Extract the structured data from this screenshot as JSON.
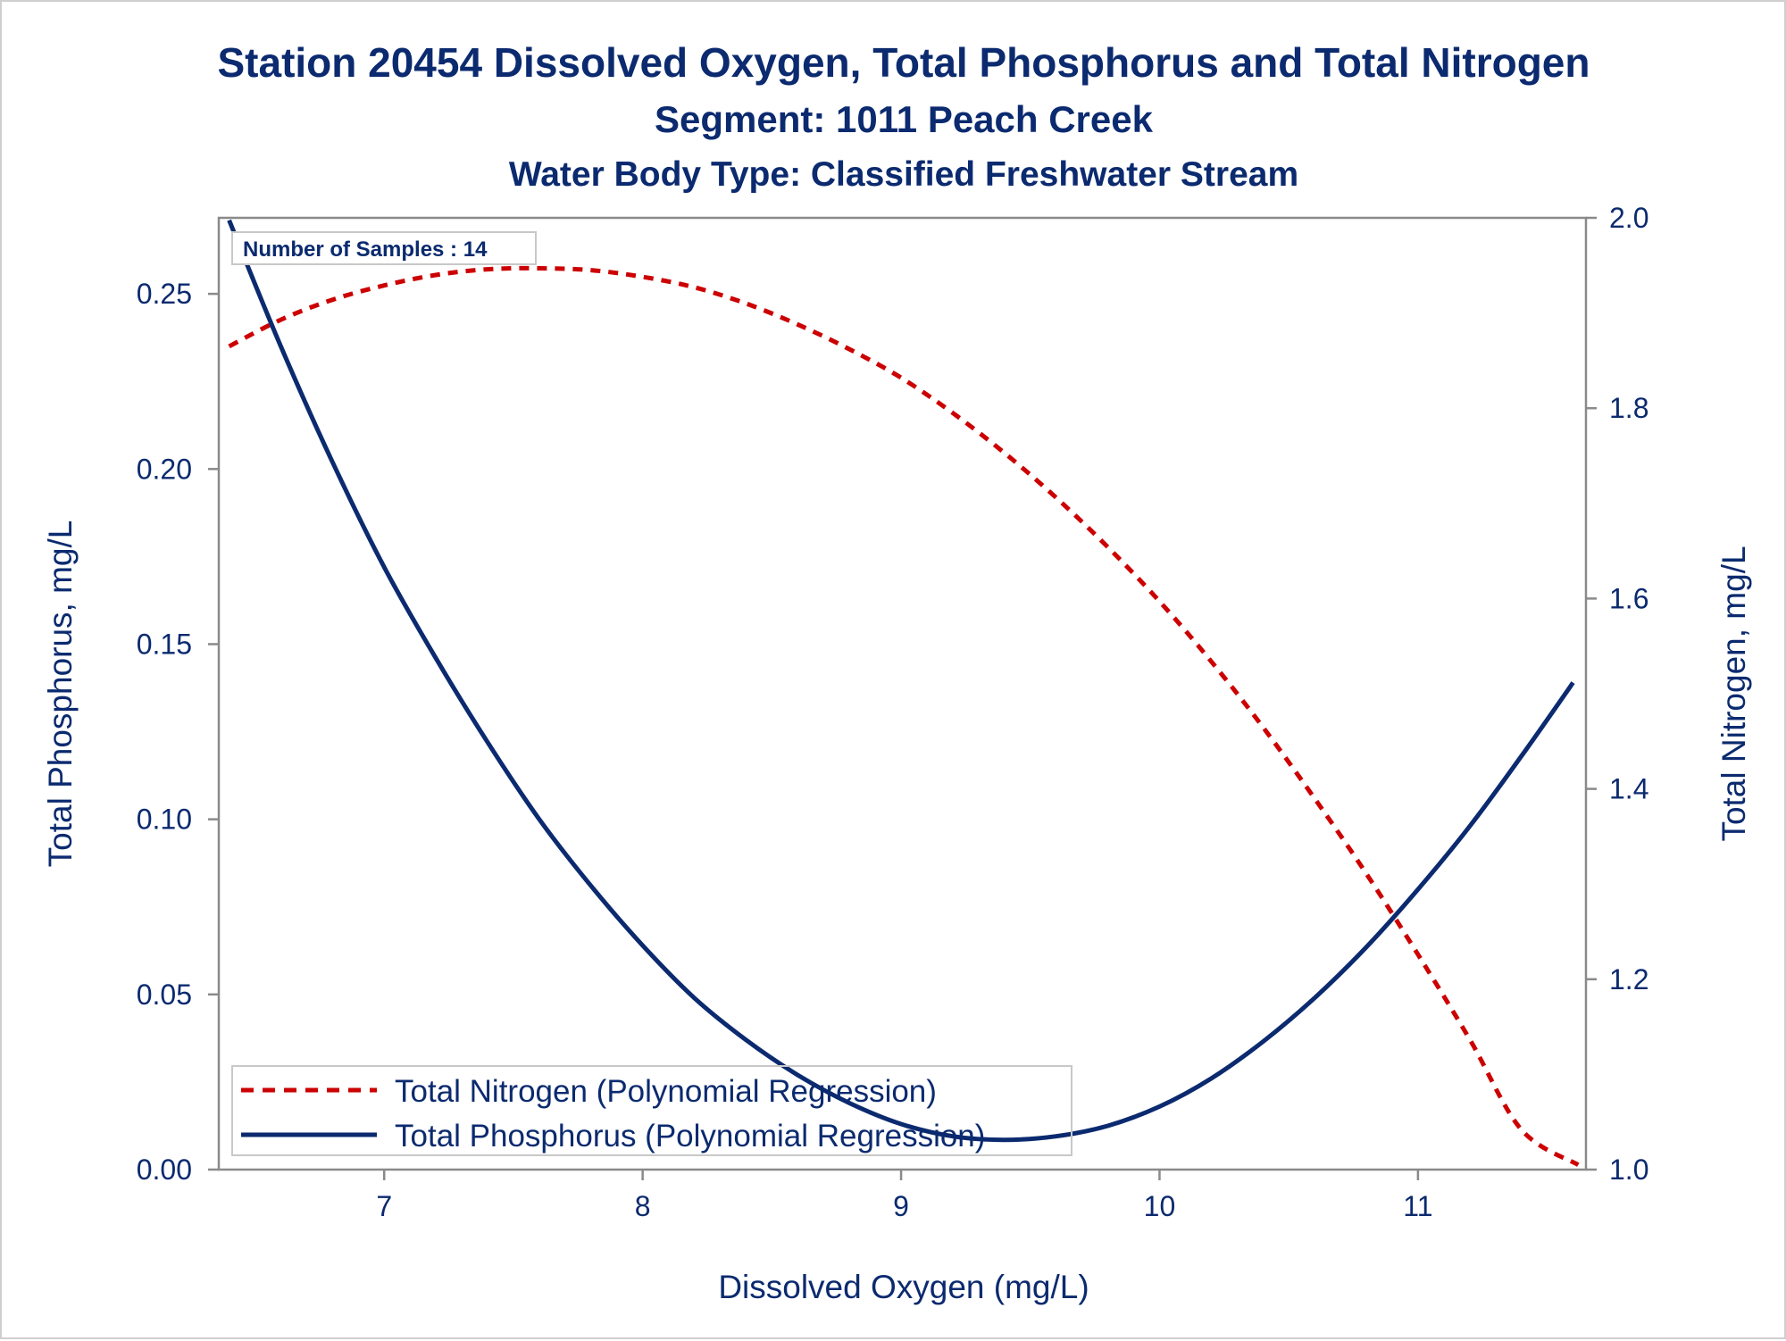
{
  "chart_data": {
    "type": "line",
    "title": "Station 20454  Dissolved Oxygen, Total Phosphorus and Total Nitrogen",
    "subtitle": "Segment: 1011  Peach Creek",
    "subtitle2": "Water Body Type: Classified Freshwater Stream",
    "xlabel": "Dissolved Oxygen (mg/L)",
    "ylabel": "Total Phosphorus, mg/L",
    "y2label": "Total Nitrogen, mg/L",
    "xlim": [
      6.36,
      11.65
    ],
    "ylim": [
      0,
      0.2717
    ],
    "y2lim": [
      1.0,
      2.0
    ],
    "x_ticks": [
      "7",
      "8",
      "9",
      "10",
      "11"
    ],
    "y_ticks": [
      "0.00",
      "0.05",
      "0.10",
      "0.15",
      "0.20",
      "0.25"
    ],
    "y2_ticks": [
      "1.0",
      "1.2",
      "1.4",
      "1.6",
      "1.8",
      "2.0"
    ],
    "annotation": "Number of Samples : 14",
    "legend_position": "bottom-left",
    "grid": false,
    "series": [
      {
        "name": "Total Nitrogen (Polynomial Regression)",
        "axis": "y2",
        "style": "dashed",
        "color": "#cc0000",
        "x": [
          6.4,
          6.6,
          6.8,
          7.0,
          7.2,
          7.4,
          7.6,
          7.8,
          8.0,
          8.2,
          8.4,
          8.6,
          8.8,
          9.0,
          9.2,
          9.4,
          9.6,
          9.8,
          10.0,
          10.2,
          10.4,
          10.6,
          10.8,
          11.0,
          11.2,
          11.4,
          11.62
        ],
        "y": [
          1.865,
          1.893,
          1.914,
          1.929,
          1.94,
          1.946,
          1.947,
          1.945,
          1.938,
          1.927,
          1.91,
          1.888,
          1.862,
          1.832,
          1.795,
          1.753,
          1.706,
          1.654,
          1.597,
          1.534,
          1.465,
          1.39,
          1.311,
          1.226,
          1.137,
          1.042,
          1.005
        ]
      },
      {
        "name": "Total Phosphorus (Polynomial Regression)",
        "axis": "y",
        "style": "solid",
        "color": "#0b2a6f",
        "x": [
          6.4,
          6.6,
          6.8,
          7.0,
          7.2,
          7.4,
          7.6,
          7.8,
          8.0,
          8.2,
          8.4,
          8.6,
          8.8,
          9.0,
          9.2,
          9.4,
          9.6,
          9.8,
          10.0,
          10.2,
          10.4,
          10.6,
          10.8,
          11.0,
          11.2,
          11.4,
          11.6
        ],
        "y": [
          0.271,
          0.235,
          0.202,
          0.172,
          0.146,
          0.122,
          0.1,
          0.081,
          0.064,
          0.049,
          0.037,
          0.027,
          0.019,
          0.013,
          0.0095,
          0.0085,
          0.0095,
          0.0125,
          0.018,
          0.026,
          0.0365,
          0.049,
          0.0635,
          0.08,
          0.098,
          0.118,
          0.139
        ]
      }
    ]
  }
}
